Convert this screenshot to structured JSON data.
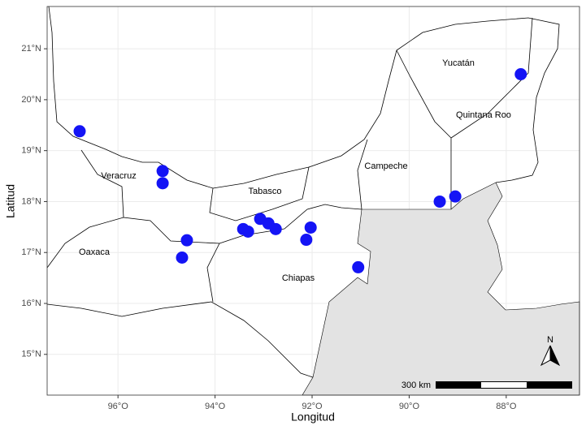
{
  "chart_data": {
    "type": "scatter",
    "xlabel": "Longitud",
    "ylabel": "Latitud",
    "x": [
      -96.79,
      -95.08,
      -95.08,
      -94.58,
      -94.68,
      -93.42,
      -93.32,
      -93.07,
      -92.9,
      -92.75,
      -92.03,
      -92.12,
      -91.05,
      -89.37,
      -89.05,
      -87.7
    ],
    "values": [
      19.38,
      18.6,
      18.36,
      17.24,
      16.9,
      17.46,
      17.41,
      17.66,
      17.57,
      17.46,
      17.49,
      17.25,
      16.71,
      18.0,
      18.1,
      20.5
    ],
    "color": "#1414f5",
    "xlim": [
      -97.46,
      -86.49
    ],
    "ylim": [
      14.2,
      21.83
    ],
    "xticks": [
      {
        "value": -96,
        "label": "96°O"
      },
      {
        "value": -94,
        "label": "94°O"
      },
      {
        "value": -92,
        "label": "92°O"
      },
      {
        "value": -90,
        "label": "90°O"
      },
      {
        "value": -88,
        "label": "88°O"
      }
    ],
    "yticks": [
      {
        "value": 15,
        "label": "15°N"
      },
      {
        "value": 16,
        "label": "16°N"
      },
      {
        "value": 17,
        "label": "17°N"
      },
      {
        "value": 18,
        "label": "18°N"
      },
      {
        "value": 19,
        "label": "19°N"
      },
      {
        "value": 20,
        "label": "20°N"
      },
      {
        "value": 21,
        "label": "21°N"
      }
    ],
    "grid": true,
    "region_labels": [
      "Veracruz",
      "Tabasco",
      "Campeche",
      "Yucatán",
      "Quintana Roo",
      "Oaxaca",
      "Chiapas"
    ],
    "scale_bar": "300 km",
    "north": "N"
  }
}
